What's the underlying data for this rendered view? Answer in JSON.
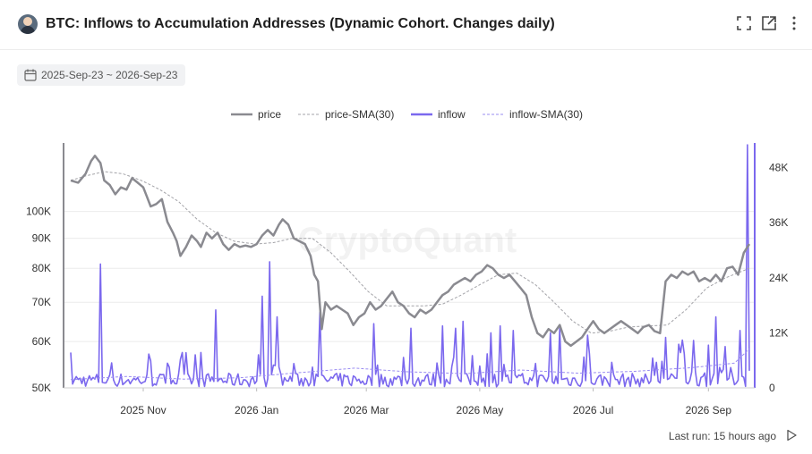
{
  "header": {
    "title": "BTC: Inflows to Accumulation Addresses (Dynamic Cohort. Changes daily)",
    "icons": [
      "avatar",
      "fullscreen-icon",
      "external-link-icon",
      "more-vertical-icon"
    ]
  },
  "date_range": {
    "label": "2025-Sep-23 ~ 2026-Sep-23",
    "icon": "calendar-icon"
  },
  "footer": {
    "last_run": "Last run: 15 hours ago",
    "icon": "play-icon"
  },
  "watermark": "CryptoQuant",
  "colors": {
    "price": "#8a8a90",
    "price_sma": "#a3a3a8",
    "inflow": "#7b68ee",
    "inflow_sma": "#9a8cf2",
    "grid": "#ebebeb"
  },
  "chart_data": {
    "type": "line",
    "x_start": "2025-09-23",
    "x_end": "2026-09-23",
    "legend": [
      "price",
      "price-SMA(30)",
      "inflow",
      "inflow-SMA(30)"
    ],
    "legend_position": "top-center",
    "grid": true,
    "x_ticks": [
      "2025 Nov",
      "2026 Jan",
      "2026 Mar",
      "2026 May",
      "2026 Jul",
      "2026 Sep"
    ],
    "y_left": {
      "scale": "log",
      "range": [
        50000,
        130000
      ],
      "ticks": [
        50000,
        60000,
        70000,
        80000,
        90000,
        100000
      ],
      "tick_labels": [
        "50K",
        "60K",
        "70K",
        "80K",
        "90K",
        "100K"
      ]
    },
    "y_right": {
      "range": [
        0,
        53000
      ],
      "ticks": [
        0,
        12000,
        24000,
        36000,
        48000
      ],
      "tick_labels": [
        "0",
        "12K",
        "24K",
        "36K",
        "48K"
      ]
    },
    "series": [
      {
        "name": "price",
        "axis": "left",
        "points": [
          [
            "2025-09-23",
            113000
          ],
          [
            "2025-09-27",
            112000
          ],
          [
            "2025-10-01",
            116000
          ],
          [
            "2025-10-04",
            122000
          ],
          [
            "2025-10-06",
            124500
          ],
          [
            "2025-10-09",
            121000
          ],
          [
            "2025-10-11",
            113000
          ],
          [
            "2025-10-14",
            111000
          ],
          [
            "2025-10-17",
            107000
          ],
          [
            "2025-10-20",
            110000
          ],
          [
            "2025-10-23",
            109000
          ],
          [
            "2025-10-26",
            114000
          ],
          [
            "2025-10-29",
            112000
          ],
          [
            "2025-11-01",
            110000
          ],
          [
            "2025-11-03",
            106000
          ],
          [
            "2025-11-05",
            102000
          ],
          [
            "2025-11-08",
            103000
          ],
          [
            "2025-11-11",
            105000
          ],
          [
            "2025-11-14",
            96000
          ],
          [
            "2025-11-17",
            92000
          ],
          [
            "2025-11-19",
            89000
          ],
          [
            "2025-11-21",
            84000
          ],
          [
            "2025-11-24",
            87000
          ],
          [
            "2025-11-27",
            91000
          ],
          [
            "2025-11-30",
            89000
          ],
          [
            "2025-12-02",
            87000
          ],
          [
            "2025-12-05",
            92000
          ],
          [
            "2025-12-08",
            90000
          ],
          [
            "2025-12-11",
            92000
          ],
          [
            "2025-12-14",
            88000
          ],
          [
            "2025-12-17",
            86000
          ],
          [
            "2025-12-20",
            88000
          ],
          [
            "2025-12-23",
            87000
          ],
          [
            "2025-12-26",
            87500
          ],
          [
            "2025-12-29",
            87000
          ],
          [
            "2026-01-01",
            88000
          ],
          [
            "2026-01-04",
            91000
          ],
          [
            "2026-01-07",
            93000
          ],
          [
            "2026-01-10",
            91000
          ],
          [
            "2026-01-13",
            95000
          ],
          [
            "2026-01-15",
            97000
          ],
          [
            "2026-01-18",
            95000
          ],
          [
            "2026-01-21",
            90000
          ],
          [
            "2026-01-24",
            89000
          ],
          [
            "2026-01-27",
            88000
          ],
          [
            "2026-01-30",
            84000
          ],
          [
            "2026-02-01",
            78000
          ],
          [
            "2026-02-03",
            76000
          ],
          [
            "2026-02-05",
            63000
          ],
          [
            "2026-02-07",
            70000
          ],
          [
            "2026-02-10",
            68000
          ],
          [
            "2026-02-13",
            69000
          ],
          [
            "2026-02-16",
            68000
          ],
          [
            "2026-02-19",
            67000
          ],
          [
            "2026-02-22",
            64000
          ],
          [
            "2026-02-25",
            66000
          ],
          [
            "2026-02-28",
            67000
          ],
          [
            "2026-03-03",
            70000
          ],
          [
            "2026-03-06",
            68000
          ],
          [
            "2026-03-09",
            69000
          ],
          [
            "2026-03-12",
            71000
          ],
          [
            "2026-03-15",
            73000
          ],
          [
            "2026-03-18",
            70000
          ],
          [
            "2026-03-21",
            69000
          ],
          [
            "2026-03-24",
            67000
          ],
          [
            "2026-03-27",
            66000
          ],
          [
            "2026-03-30",
            68000
          ],
          [
            "2026-04-02",
            67000
          ],
          [
            "2026-04-05",
            68000
          ],
          [
            "2026-04-08",
            70000
          ],
          [
            "2026-04-11",
            72000
          ],
          [
            "2026-04-14",
            73000
          ],
          [
            "2026-04-17",
            75000
          ],
          [
            "2026-04-20",
            76000
          ],
          [
            "2026-04-23",
            77000
          ],
          [
            "2026-04-26",
            76000
          ],
          [
            "2026-04-29",
            78000
          ],
          [
            "2026-05-02",
            79000
          ],
          [
            "2026-05-05",
            81000
          ],
          [
            "2026-05-08",
            80000
          ],
          [
            "2026-05-11",
            78000
          ],
          [
            "2026-05-14",
            77000
          ],
          [
            "2026-05-17",
            78000
          ],
          [
            "2026-05-20",
            76000
          ],
          [
            "2026-05-23",
            74000
          ],
          [
            "2026-05-26",
            72000
          ],
          [
            "2026-05-29",
            66000
          ],
          [
            "2026-06-01",
            62000
          ],
          [
            "2026-06-04",
            61000
          ],
          [
            "2026-06-07",
            63000
          ],
          [
            "2026-06-10",
            62000
          ],
          [
            "2026-06-13",
            64000
          ],
          [
            "2026-06-16",
            60000
          ],
          [
            "2026-06-19",
            59000
          ],
          [
            "2026-06-22",
            60000
          ],
          [
            "2026-06-25",
            61000
          ],
          [
            "2026-06-28",
            63000
          ],
          [
            "2026-07-01",
            65000
          ],
          [
            "2026-07-04",
            63000
          ],
          [
            "2026-07-07",
            62000
          ],
          [
            "2026-07-10",
            63000
          ],
          [
            "2026-07-13",
            64000
          ],
          [
            "2026-07-16",
            65000
          ],
          [
            "2026-07-19",
            64000
          ],
          [
            "2026-07-22",
            63000
          ],
          [
            "2026-07-25",
            62000
          ],
          [
            "2026-07-28",
            63500
          ],
          [
            "2026-07-31",
            64000
          ],
          [
            "2026-08-03",
            62500
          ],
          [
            "2026-08-06",
            62000
          ],
          [
            "2026-08-09",
            76000
          ],
          [
            "2026-08-12",
            78000
          ],
          [
            "2026-08-15",
            77000
          ],
          [
            "2026-08-18",
            79000
          ],
          [
            "2026-08-21",
            78000
          ],
          [
            "2026-08-24",
            79000
          ],
          [
            "2026-08-27",
            76000
          ],
          [
            "2026-08-30",
            77000
          ],
          [
            "2026-09-02",
            76000
          ],
          [
            "2026-09-05",
            78000
          ],
          [
            "2026-09-08",
            76000
          ],
          [
            "2026-09-11",
            80000
          ],
          [
            "2026-09-14",
            80500
          ],
          [
            "2026-09-17",
            78000
          ],
          [
            "2026-09-20",
            85000
          ],
          [
            "2026-09-23",
            88000
          ]
        ]
      },
      {
        "name": "price-SMA(30)",
        "axis": "left",
        "points": [
          [
            "2025-09-23",
            113000
          ],
          [
            "2025-10-01",
            115000
          ],
          [
            "2025-10-11",
            117000
          ],
          [
            "2025-10-21",
            116000
          ],
          [
            "2025-10-31",
            113000
          ],
          [
            "2025-11-10",
            109000
          ],
          [
            "2025-11-20",
            104000
          ],
          [
            "2025-11-30",
            97000
          ],
          [
            "2025-12-10",
            92000
          ],
          [
            "2025-12-20",
            89000
          ],
          [
            "2025-12-31",
            88000
          ],
          [
            "2026-01-10",
            88500
          ],
          [
            "2026-01-20",
            90000
          ],
          [
            "2026-01-31",
            90000
          ],
          [
            "2026-02-10",
            85000
          ],
          [
            "2026-02-20",
            79000
          ],
          [
            "2026-03-02",
            73000
          ],
          [
            "2026-03-12",
            69000
          ],
          [
            "2026-03-22",
            69000
          ],
          [
            "2026-04-01",
            69000
          ],
          [
            "2026-04-11",
            69500
          ],
          [
            "2026-04-21",
            72000
          ],
          [
            "2026-05-01",
            75000
          ],
          [
            "2026-05-11",
            78000
          ],
          [
            "2026-05-21",
            78500
          ],
          [
            "2026-05-31",
            75000
          ],
          [
            "2026-06-10",
            70000
          ],
          [
            "2026-06-20",
            65000
          ],
          [
            "2026-06-30",
            62000
          ],
          [
            "2026-07-10",
            62500
          ],
          [
            "2026-07-20",
            63500
          ],
          [
            "2026-07-31",
            63800
          ],
          [
            "2026-08-10",
            64000
          ],
          [
            "2026-08-20",
            68000
          ],
          [
            "2026-08-31",
            74000
          ],
          [
            "2026-09-10",
            77000
          ],
          [
            "2026-09-23",
            80000
          ]
        ]
      },
      {
        "name": "inflow",
        "axis": "right",
        "generated": "daily"
      },
      {
        "name": "inflow-SMA(30)",
        "axis": "right",
        "points": [
          [
            "2025-09-23",
            1800
          ],
          [
            "2025-10-23",
            2500
          ],
          [
            "2025-11-23",
            1900
          ],
          [
            "2025-12-23",
            2200
          ],
          [
            "2026-01-23",
            3300
          ],
          [
            "2026-02-23",
            4300
          ],
          [
            "2026-03-23",
            3500
          ],
          [
            "2026-04-23",
            3100
          ],
          [
            "2026-05-23",
            3900
          ],
          [
            "2026-06-23",
            3200
          ],
          [
            "2026-07-23",
            3600
          ],
          [
            "2026-08-23",
            4400
          ],
          [
            "2026-09-15",
            5400
          ],
          [
            "2026-09-23",
            8500
          ]
        ]
      }
    ],
    "inflow_spikes": [
      [
        "2025-10-09",
        27000
      ],
      [
        "2025-12-10",
        17000
      ],
      [
        "2026-01-04",
        20000
      ],
      [
        "2026-01-08",
        27500
      ],
      [
        "2026-01-12",
        15500
      ],
      [
        "2026-02-04",
        16500
      ],
      [
        "2026-03-05",
        14000
      ],
      [
        "2026-03-25",
        13000
      ],
      [
        "2026-04-11",
        13500
      ],
      [
        "2026-04-18",
        13000
      ],
      [
        "2026-04-22",
        14500
      ],
      [
        "2026-05-07",
        12000
      ],
      [
        "2026-05-12",
        13500
      ],
      [
        "2026-05-19",
        12500
      ],
      [
        "2026-06-08",
        12000
      ],
      [
        "2026-06-13",
        13000
      ],
      [
        "2026-06-28",
        11500
      ],
      [
        "2026-08-09",
        11000
      ],
      [
        "2026-08-16",
        9500
      ],
      [
        "2026-09-05",
        15500
      ],
      [
        "2026-09-10",
        9000
      ],
      [
        "2026-09-18",
        12500
      ],
      [
        "2026-09-22",
        53000
      ]
    ]
  }
}
